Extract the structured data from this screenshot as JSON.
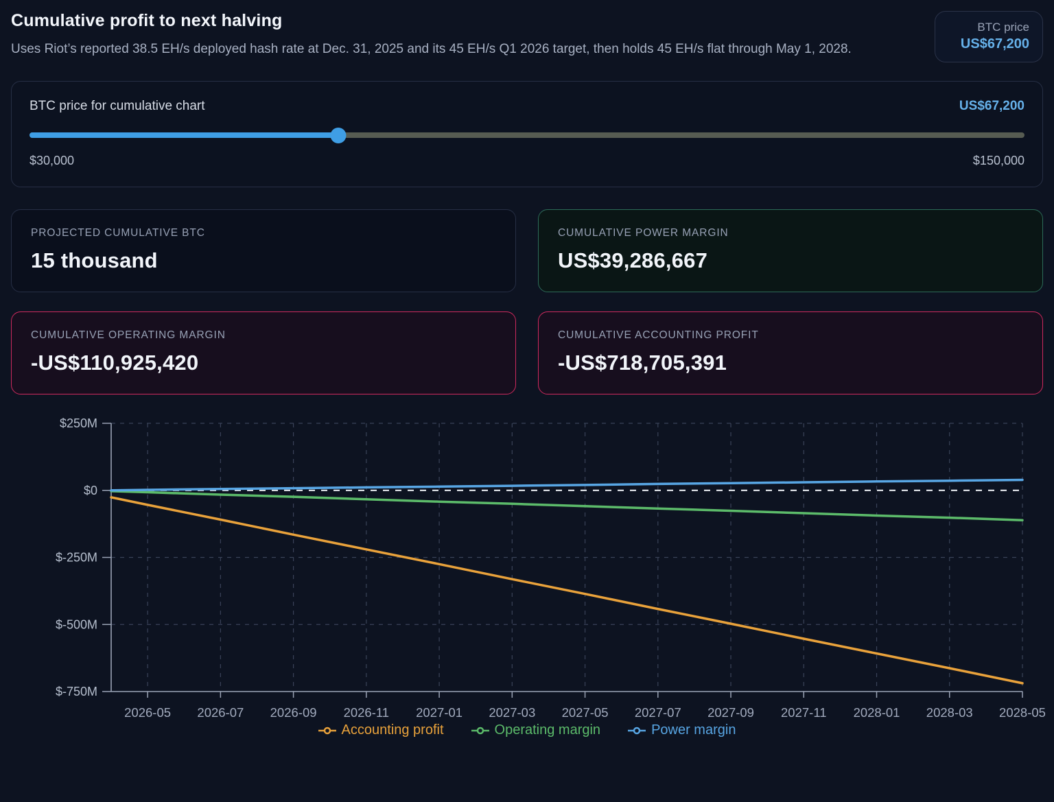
{
  "header": {
    "title": "Cumulative profit to next halving",
    "subtitle": "Uses Riot’s reported 38.5 EH/s deployed hash rate at Dec. 31, 2025 and its 45 EH/s Q1 2026 target, then holds 45 EH/s flat through May 1, 2028.",
    "btc_badge": {
      "label": "BTC price",
      "value": "US$67,200"
    }
  },
  "slider": {
    "label": "BTC price for cumulative chart",
    "value": "US$67,200",
    "min_label": "$30,000",
    "max_label": "$150,000",
    "min": 30000,
    "max": 150000,
    "current": 67200,
    "percent": 31,
    "accent_color": "#3f9ee5"
  },
  "stats": [
    {
      "label": "PROJECTED CUMULATIVE BTC",
      "value": "15 thousand",
      "variant": "neutral"
    },
    {
      "label": "CUMULATIVE POWER MARGIN",
      "value": "US$39,286,667",
      "variant": "positive"
    },
    {
      "label": "CUMULATIVE OPERATING MARGIN",
      "value": "-US$110,925,420",
      "variant": "negative"
    },
    {
      "label": "CUMULATIVE ACCOUNTING PROFIT",
      "value": "-US$718,705,391",
      "variant": "negative"
    }
  ],
  "chart_data": {
    "type": "line",
    "title": "",
    "xlabel": "",
    "ylabel": "",
    "unit": "USD millions",
    "ylim": [
      -750,
      250
    ],
    "y_ticks": [
      "$250M",
      "$0",
      "$-250M",
      "$-500M",
      "$-750M"
    ],
    "y_tick_values": [
      250,
      0,
      -250,
      -500,
      -750
    ],
    "x_ticks": [
      "2026-05",
      "2026-07",
      "2026-09",
      "2026-11",
      "2027-01",
      "2027-03",
      "2027-05",
      "2027-07",
      "2027-09",
      "2027-11",
      "2028-01",
      "2028-03",
      "2028-05"
    ],
    "x_tick_months": [
      1,
      3,
      5,
      7,
      9,
      11,
      13,
      15,
      17,
      19,
      21,
      23,
      25
    ],
    "x_domain_months": [
      0,
      25
    ],
    "x_start_label": "2026-04",
    "grid": true,
    "zero_line": true,
    "zero_line_color": "#f2f5f9",
    "grid_color": "#3a4359",
    "axis_color": "#9aa3b5",
    "legend_position": "bottom",
    "series": [
      {
        "name": "Accounting profit",
        "color": "#e9a23b",
        "x": [
          0,
          1,
          3,
          5,
          7,
          9,
          11,
          13,
          15,
          17,
          19,
          21,
          23,
          25
        ],
        "values": [
          -26,
          -54,
          -109,
          -165,
          -220,
          -275,
          -331,
          -386,
          -442,
          -497,
          -553,
          -608,
          -663,
          -719
        ]
      },
      {
        "name": "Operating margin",
        "color": "#5cbb6a",
        "x": [
          0,
          1,
          3,
          5,
          7,
          9,
          11,
          13,
          15,
          17,
          19,
          21,
          23,
          25
        ],
        "values": [
          -3,
          -7,
          -16,
          -24,
          -33,
          -42,
          -50,
          -59,
          -68,
          -76,
          -85,
          -94,
          -102,
          -111
        ]
      },
      {
        "name": "Power margin",
        "color": "#58a6e4",
        "x": [
          0,
          1,
          3,
          5,
          7,
          9,
          11,
          13,
          15,
          17,
          19,
          21,
          23,
          25
        ],
        "values": [
          0,
          2,
          5,
          8,
          11,
          14,
          17,
          20,
          24,
          27,
          30,
          33,
          36,
          39
        ]
      }
    ]
  }
}
